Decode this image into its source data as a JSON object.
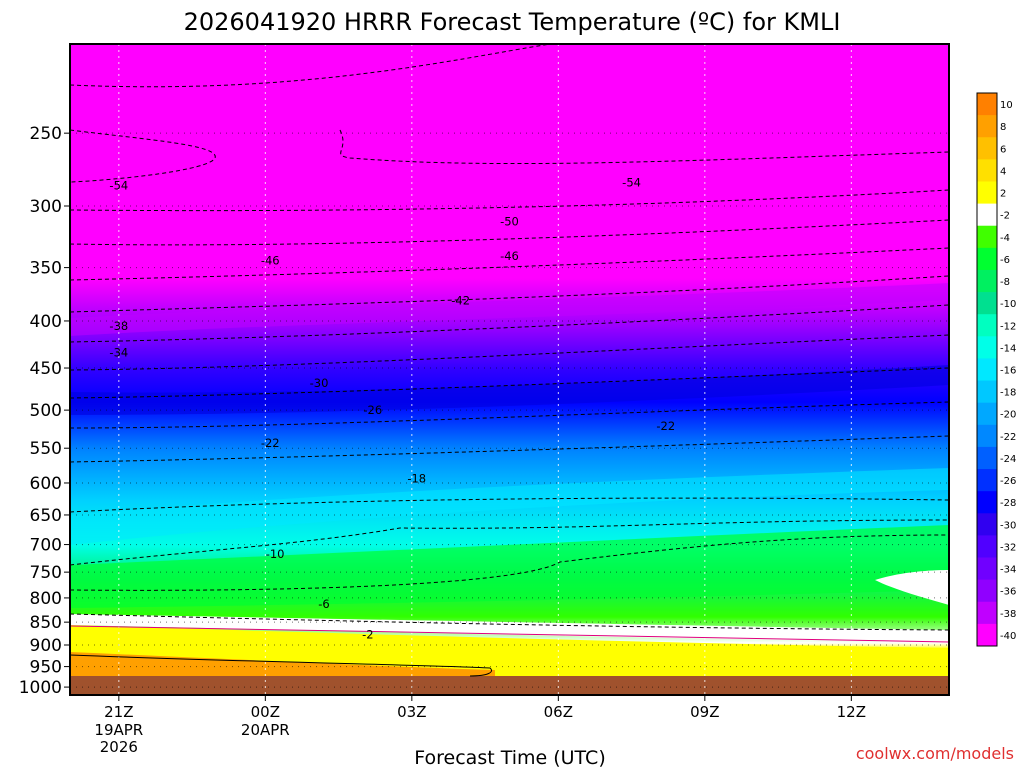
{
  "chart_data": {
    "type": "contour",
    "title": "2026041920 HRRR Forecast Temperature (ºC) for KMLI",
    "xlabel": "Forecast Time (UTC)",
    "ylabel": "",
    "x_ticks": [
      {
        "label": "21Z",
        "sub": [
          "19APR",
          "2026"
        ],
        "hour": 1
      },
      {
        "label": "00Z",
        "sub": [
          "20APR"
        ],
        "hour": 4
      },
      {
        "label": "03Z",
        "sub": [],
        "hour": 7
      },
      {
        "label": "06Z",
        "sub": [],
        "hour": 10
      },
      {
        "label": "09Z",
        "sub": [],
        "hour": 13
      },
      {
        "label": "12Z",
        "sub": [],
        "hour": 16
      }
    ],
    "xlim_hours": [
      0,
      18
    ],
    "y_ticks": [
      250,
      300,
      350,
      400,
      450,
      500,
      550,
      600,
      650,
      700,
      750,
      800,
      850,
      900,
      950,
      1000
    ],
    "ylim_hpa": [
      200,
      1020
    ],
    "y_scale": "log",
    "colorbar": {
      "levels": [
        10,
        8,
        6,
        4,
        2,
        -2,
        -4,
        -6,
        -8,
        -10,
        -12,
        -14,
        -16,
        -18,
        -20,
        -22,
        -24,
        -26,
        -28,
        -30,
        -32,
        -34,
        -36,
        -38,
        -40
      ],
      "colors": [
        "#ff8000",
        "#ffa000",
        "#ffc000",
        "#ffe000",
        "#ffff00",
        "#ffffff",
        "#40ff00",
        "#00ff30",
        "#00f060",
        "#00e090",
        "#00ffc0",
        "#00ffe8",
        "#00e8ff",
        "#00c8ff",
        "#00a8ff",
        "#0088ff",
        "#0060ff",
        "#0030ff",
        "#0000ff",
        "#3000f0",
        "#5000ff",
        "#7000ff",
        "#9000ff",
        "#c000ff",
        "#ff00ff"
      ]
    },
    "contour_labels": [
      {
        "text": "-54",
        "hour": 1.0,
        "hpa": 285
      },
      {
        "text": "-54",
        "hour": 11.5,
        "hpa": 283
      },
      {
        "text": "-50",
        "hour": 9.0,
        "hpa": 312
      },
      {
        "text": "-46",
        "hour": 4.1,
        "hpa": 344
      },
      {
        "text": "-46",
        "hour": 9.0,
        "hpa": 340
      },
      {
        "text": "-42",
        "hour": 8.0,
        "hpa": 380
      },
      {
        "text": "-38",
        "hour": 1.0,
        "hpa": 405
      },
      {
        "text": "-34",
        "hour": 1.0,
        "hpa": 433
      },
      {
        "text": "-30",
        "hour": 5.1,
        "hpa": 467
      },
      {
        "text": "-26",
        "hour": 6.2,
        "hpa": 500
      },
      {
        "text": "-22",
        "hour": 4.1,
        "hpa": 543
      },
      {
        "text": "-22",
        "hour": 12.2,
        "hpa": 520
      },
      {
        "text": "-18",
        "hour": 7.1,
        "hpa": 593
      },
      {
        "text": "-10",
        "hour": 4.2,
        "hpa": 717
      },
      {
        "text": "-6",
        "hour": 5.2,
        "hpa": 812
      },
      {
        "text": "-2",
        "hour": 6.1,
        "hpa": 877
      }
    ],
    "credit": "coolwx.com/models"
  }
}
